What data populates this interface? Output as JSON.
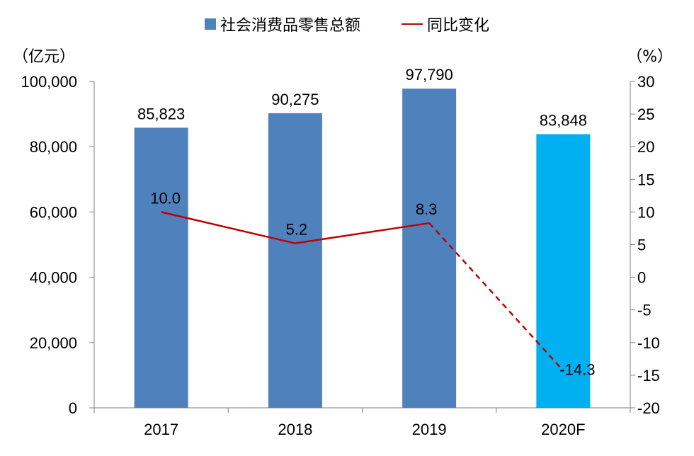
{
  "legend": {
    "bar_label": "社会消费品零售总额",
    "line_label": "同比变化"
  },
  "units": {
    "left": "（亿元）",
    "right": "（%）"
  },
  "colors": {
    "bar": "#4f81bd",
    "bar_forecast": "#00b0f0",
    "line": "#c00000",
    "axis": "#7f7f7f"
  },
  "chart_data": {
    "type": "bar",
    "categories": [
      "2017",
      "2018",
      "2019",
      "2020F"
    ],
    "series": [
      {
        "name": "社会消费品零售总额",
        "type": "bar",
        "axis": "left",
        "values": [
          85823,
          90275,
          97790,
          83848
        ],
        "labels": [
          "85,823",
          "90,275",
          "97,790",
          "83,848"
        ],
        "forecast_from_index": 3
      },
      {
        "name": "同比变化",
        "type": "line",
        "axis": "right",
        "values": [
          10.0,
          5.2,
          8.3,
          -14.3
        ],
        "labels": [
          "10.0",
          "5.2",
          "8.3",
          "-14.3"
        ],
        "dashed_from_index": 2
      }
    ],
    "y_left": {
      "range": [
        0,
        100000
      ],
      "ticks": [
        "0",
        "20,000",
        "40,000",
        "60,000",
        "80,000",
        "100,000"
      ],
      "tick_values": [
        0,
        20000,
        40000,
        60000,
        80000,
        100000
      ]
    },
    "y_right": {
      "range": [
        -20,
        30
      ],
      "ticks": [
        "-20",
        "-15",
        "-10",
        "-5",
        "0",
        "5",
        "10",
        "15",
        "20",
        "25",
        "30"
      ],
      "tick_values": [
        -20,
        -15,
        -10,
        -5,
        0,
        5,
        10,
        15,
        20,
        25,
        30
      ]
    },
    "grid": false,
    "legend_position": "top"
  }
}
